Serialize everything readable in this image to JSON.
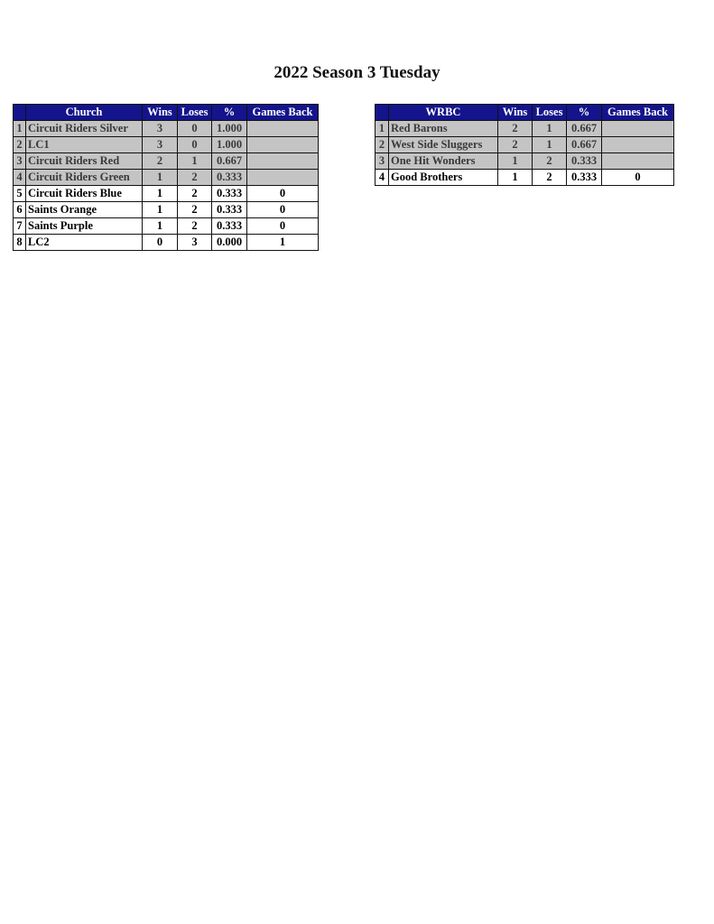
{
  "title": "2022 Season 3 Tuesday",
  "tables": [
    {
      "league": "Church",
      "headers": [
        "Wins",
        "Loses",
        "%",
        "Games Back"
      ],
      "rows": [
        {
          "rank": "1",
          "team": "Circuit Riders Silver",
          "wins": "3",
          "loses": "0",
          "pct": "1.000",
          "gb": "",
          "shaded": true
        },
        {
          "rank": "2",
          "team": "LC1",
          "wins": "3",
          "loses": "0",
          "pct": "1.000",
          "gb": "",
          "shaded": true
        },
        {
          "rank": "3",
          "team": "Circuit Riders Red",
          "wins": "2",
          "loses": "1",
          "pct": "0.667",
          "gb": "",
          "shaded": true
        },
        {
          "rank": "4",
          "team": "Circuit Riders Green",
          "wins": "1",
          "loses": "2",
          "pct": "0.333",
          "gb": "",
          "shaded": true
        },
        {
          "rank": "5",
          "team": "Circuit Riders Blue",
          "wins": "1",
          "loses": "2",
          "pct": "0.333",
          "gb": "0",
          "shaded": false
        },
        {
          "rank": "6",
          "team": "Saints Orange",
          "wins": "1",
          "loses": "2",
          "pct": "0.333",
          "gb": "0",
          "shaded": false
        },
        {
          "rank": "7",
          "team": "Saints Purple",
          "wins": "1",
          "loses": "2",
          "pct": "0.333",
          "gb": "0",
          "shaded": false
        },
        {
          "rank": "8",
          "team": "LC2",
          "wins": "0",
          "loses": "3",
          "pct": "0.000",
          "gb": "1",
          "shaded": false
        }
      ]
    },
    {
      "league": "WRBC",
      "headers": [
        "Wins",
        "Loses",
        "%",
        "Games Back"
      ],
      "rows": [
        {
          "rank": "1",
          "team": "Red Barons",
          "wins": "2",
          "loses": "1",
          "pct": "0.667",
          "gb": "",
          "shaded": true
        },
        {
          "rank": "2",
          "team": "West Side Sluggers",
          "wins": "2",
          "loses": "1",
          "pct": "0.667",
          "gb": "",
          "shaded": true
        },
        {
          "rank": "3",
          "team": "One Hit Wonders",
          "wins": "1",
          "loses": "2",
          "pct": "0.333",
          "gb": "",
          "shaded": true
        },
        {
          "rank": "4",
          "team": "Good Brothers",
          "wins": "1",
          "loses": "2",
          "pct": "0.333",
          "gb": "0",
          "shaded": false
        }
      ]
    }
  ],
  "colors": {
    "header": "#14148c",
    "shaded_row": "#c4c4c4"
  }
}
